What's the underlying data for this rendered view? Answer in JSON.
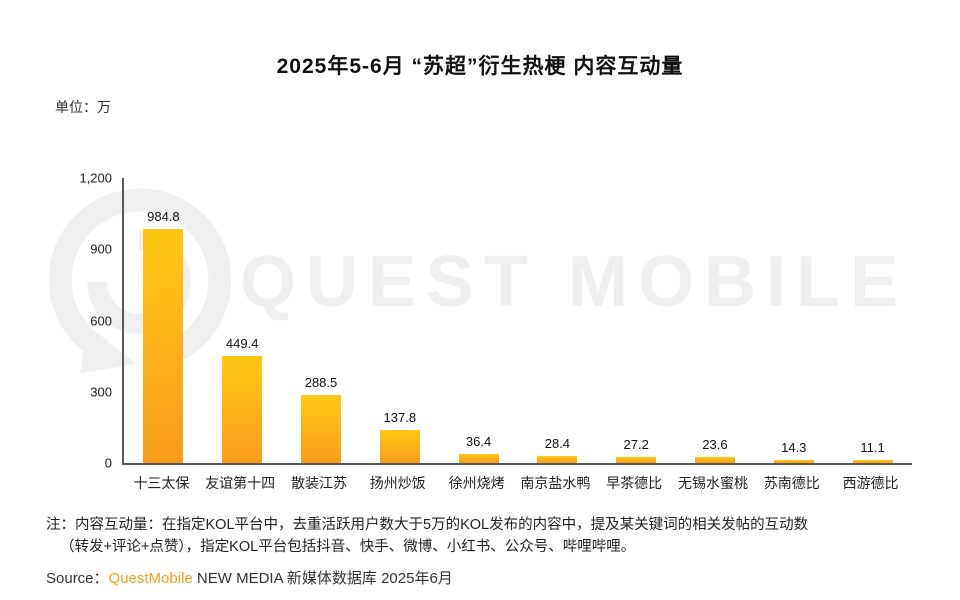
{
  "title": "2025年5-6月 “苏超”衍生热梗 内容互动量",
  "unit_label": "单位：万",
  "watermark": {
    "text": "QUEST MOBILE"
  },
  "note": {
    "line1": "注：内容互动量：在指定KOL平台中，去重活跃用户数大于5万的KOL发布的内容中，提及某关键词的相关发帖的互动数",
    "line2": "（转发+评论+点赞），指定KOL平台包括抖音、快手、微博、小红书、公众号、哔哩哔哩。"
  },
  "source": {
    "prefix": "Source：",
    "brand": "QuestMobile",
    "suffix": " NEW MEDIA 新媒体数据库 2025年6月"
  },
  "colors": {
    "bar_top": "#FFC814",
    "bar_bottom": "#F89D1B",
    "brand_orange": "#F9A01B",
    "watermark_gray": "#F0F0F0",
    "axis_gray": "#595959"
  },
  "chart_data": {
    "type": "bar",
    "title": "2025年5-6月 “苏超”衍生热梗 内容互动量",
    "categories": [
      "十三太保",
      "友谊第十四",
      "散装江苏",
      "扬州炒饭",
      "徐州烧烤",
      "南京盐水鸭",
      "早茶德比",
      "无锡水蜜桃",
      "苏南德比",
      "西游德比"
    ],
    "values": [
      984.8,
      449.4,
      288.5,
      137.8,
      36.4,
      28.4,
      27.2,
      23.6,
      14.3,
      11.1
    ],
    "xlabel": "",
    "ylabel": "单位：万",
    "ylim": [
      0,
      1200
    ],
    "y_ticks": [
      {
        "value": 0,
        "label": "0"
      },
      {
        "value": 300,
        "label": "300"
      },
      {
        "value": 600,
        "label": "600"
      },
      {
        "value": 900,
        "label": "900"
      },
      {
        "value": 1200,
        "label": "1,200"
      }
    ],
    "grid": false,
    "legend": false,
    "bar_labels_shown": true
  }
}
